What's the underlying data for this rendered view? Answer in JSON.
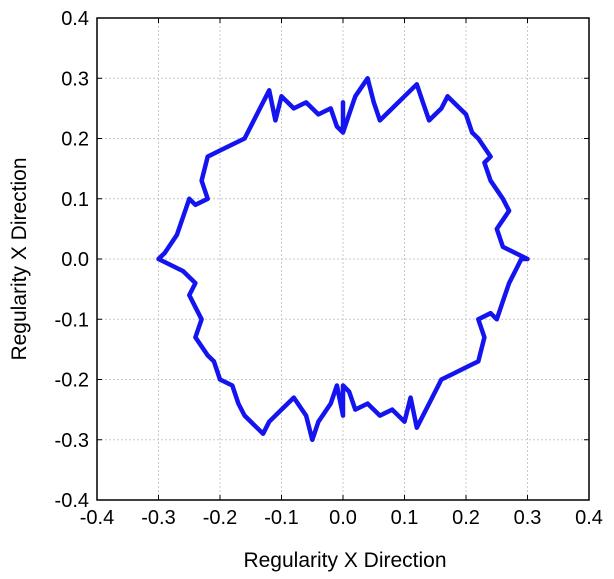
{
  "chart_data": {
    "type": "line",
    "title": "",
    "xlabel": "Regularity X Direction",
    "ylabel": "Regularity X Direction",
    "xlim": [
      -0.4,
      0.4
    ],
    "ylim": [
      -0.4,
      0.4
    ],
    "xticks": [
      -0.4,
      -0.3,
      -0.2,
      -0.1,
      0.0,
      0.1,
      0.2,
      0.3,
      0.4
    ],
    "yticks": [
      -0.4,
      -0.3,
      -0.2,
      -0.1,
      0.0,
      0.1,
      0.2,
      0.3,
      0.4
    ],
    "xtick_labels": [
      "-0.4",
      "-0.3",
      "-0.2",
      "-0.1",
      "0.0",
      "0.1",
      "0.2",
      "0.3",
      "0.4"
    ],
    "ytick_labels": [
      "-0.4",
      "-0.3",
      "-0.2",
      "-0.1",
      "0.0",
      "0.1",
      "0.2",
      "0.3",
      "0.4"
    ],
    "grid": true,
    "legend": "none",
    "series": [
      {
        "color": "#1414f0",
        "x": [
          0.0,
          0.0,
          -0.01,
          -0.02,
          -0.04,
          -0.06,
          -0.08,
          -0.1,
          -0.11,
          -0.12,
          -0.14,
          -0.16,
          -0.18,
          -0.2,
          -0.22,
          -0.23,
          -0.22,
          -0.24,
          -0.25,
          -0.26,
          -0.27,
          -0.29,
          -0.3,
          -0.26,
          -0.24,
          -0.25,
          -0.24,
          -0.23,
          -0.24,
          -0.22,
          -0.21,
          -0.2,
          -0.18,
          -0.17,
          -0.16,
          -0.14,
          -0.13,
          -0.12,
          -0.1,
          -0.08,
          -0.06,
          -0.05,
          -0.04,
          -0.02,
          -0.01,
          0.0,
          0.0,
          0.01,
          0.02,
          0.04,
          0.06,
          0.08,
          0.1,
          0.11,
          0.12,
          0.14,
          0.16,
          0.18,
          0.2,
          0.22,
          0.23,
          0.22,
          0.24,
          0.25,
          0.26,
          0.27,
          0.28,
          0.29,
          0.3,
          0.26,
          0.25,
          0.27,
          0.26,
          0.24,
          0.23,
          0.24,
          0.22,
          0.21,
          0.2,
          0.18,
          0.17,
          0.16,
          0.14,
          0.13,
          0.12,
          0.1,
          0.08,
          0.06,
          0.05,
          0.04,
          0.02,
          0.01,
          0.0
        ],
        "y": [
          0.26,
          0.21,
          0.22,
          0.25,
          0.24,
          0.26,
          0.25,
          0.27,
          0.23,
          0.28,
          0.24,
          0.2,
          0.19,
          0.18,
          0.17,
          0.13,
          0.1,
          0.09,
          0.1,
          0.07,
          0.04,
          0.01,
          0.0,
          -0.02,
          -0.04,
          -0.06,
          -0.08,
          -0.1,
          -0.13,
          -0.16,
          -0.17,
          -0.2,
          -0.21,
          -0.24,
          -0.26,
          -0.28,
          -0.29,
          -0.27,
          -0.25,
          -0.23,
          -0.26,
          -0.3,
          -0.27,
          -0.24,
          -0.21,
          -0.26,
          -0.21,
          -0.22,
          -0.25,
          -0.24,
          -0.26,
          -0.25,
          -0.27,
          -0.23,
          -0.28,
          -0.24,
          -0.2,
          -0.19,
          -0.18,
          -0.17,
          -0.13,
          -0.1,
          -0.09,
          -0.1,
          -0.07,
          -0.04,
          -0.02,
          0.0,
          0.0,
          0.02,
          0.05,
          0.08,
          0.1,
          0.13,
          0.16,
          0.17,
          0.2,
          0.21,
          0.24,
          0.26,
          0.27,
          0.25,
          0.23,
          0.26,
          0.29,
          0.27,
          0.25,
          0.23,
          0.26,
          0.3,
          0.27,
          0.24,
          0.21
        ]
      }
    ]
  }
}
